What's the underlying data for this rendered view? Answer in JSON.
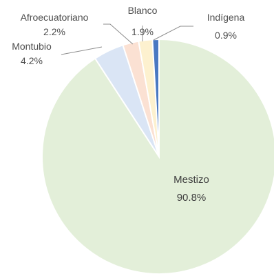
{
  "chart_data": {
    "type": "pie",
    "categories": [
      "Mestizo",
      "Montubio",
      "Afroecuatoriano",
      "Blanco",
      "Indígena"
    ],
    "values": [
      90.8,
      4.2,
      2.2,
      1.9,
      0.9
    ],
    "value_labels": [
      "90.8%",
      "4.2%",
      "2.2%",
      "1.9%",
      "0.9%"
    ],
    "colors": [
      "#e3efd9",
      "#dae5f5",
      "#fbe1d3",
      "#fdf1cf",
      "#4a78c2"
    ],
    "start": "12 o'clock",
    "direction": "counterclockwise",
    "legend": "none",
    "data_labels": "category and percent"
  }
}
